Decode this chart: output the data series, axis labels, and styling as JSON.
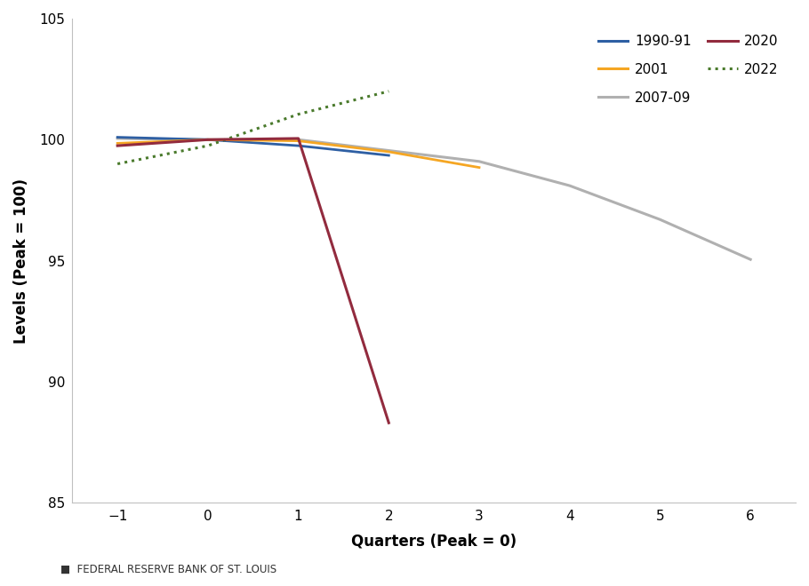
{
  "series": {
    "1990-91": {
      "x": [
        -1,
        0,
        1,
        2
      ],
      "y": [
        100.1,
        100.0,
        99.75,
        99.35
      ],
      "color": "#2e5fa3",
      "linestyle": "solid",
      "linewidth": 2.0,
      "zorder": 3
    },
    "2001": {
      "x": [
        -1,
        0,
        1,
        2,
        3
      ],
      "y": [
        99.85,
        100.0,
        99.95,
        99.5,
        98.85
      ],
      "color": "#f5a623",
      "linestyle": "solid",
      "linewidth": 2.0,
      "zorder": 3
    },
    "2007-09": {
      "x": [
        -1,
        0,
        1,
        2,
        3,
        4,
        5,
        6
      ],
      "y": [
        100.05,
        100.0,
        100.0,
        99.55,
        99.1,
        98.1,
        96.7,
        95.05
      ],
      "color": "#b0b0b0",
      "linestyle": "solid",
      "linewidth": 2.2,
      "zorder": 2
    },
    "2020": {
      "x": [
        -1,
        0,
        1,
        2
      ],
      "y": [
        99.75,
        100.0,
        100.05,
        88.3
      ],
      "color": "#922b3e",
      "linestyle": "solid",
      "linewidth": 2.2,
      "zorder": 4
    },
    "2022": {
      "x": [
        -1,
        0,
        1,
        2
      ],
      "y": [
        99.0,
        99.75,
        101.05,
        102.0
      ],
      "color": "#4a7a2c",
      "linestyle": "dotted",
      "linewidth": 2.2,
      "zorder": 3
    }
  },
  "xlim": [
    -1.5,
    6.5
  ],
  "ylim": [
    85,
    105
  ],
  "xticks": [
    -1,
    0,
    1,
    2,
    3,
    4,
    5,
    6
  ],
  "yticks": [
    85,
    90,
    95,
    100,
    105
  ],
  "xlabel": "Quarters (Peak = 0)",
  "ylabel": "Levels (Peak = 100)",
  "legend_row1": [
    "1990-91",
    "2001"
  ],
  "legend_row2": [
    "2007-09",
    "2020"
  ],
  "legend_row3": [
    "2022"
  ],
  "legend_order": [
    "1990-91",
    "2001",
    "2007-09",
    "2020",
    "2022"
  ],
  "footer": "■  FEDERAL RESERVE BANK OF ST. LOUIS",
  "background_color": "#ffffff",
  "plot_bg_color": "#ffffff"
}
